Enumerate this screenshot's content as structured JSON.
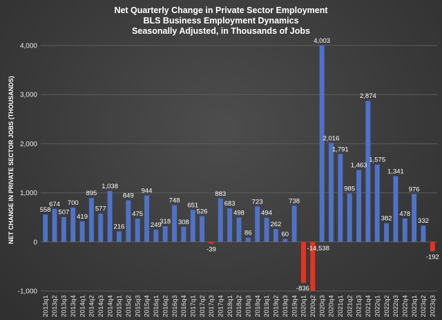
{
  "chart_data": {
    "type": "bar",
    "title_lines": [
      "Net Quarterly Change in Private Sector Employment",
      "BLS Business Employment Dynamics",
      "Seasonally Adjusted, in Thousands of Jobs"
    ],
    "ylabel": "NET CHANGE IN PRIVATE SECTOR JOBS (THOUSANDS)",
    "xlabel": "",
    "ylim": [
      -1000,
      4000
    ],
    "yticks": [
      -1000,
      0,
      1000,
      2000,
      3000,
      4000
    ],
    "ytick_labels": [
      "-1,000",
      "0",
      "1,000",
      "2,000",
      "3,000",
      "4,000"
    ],
    "grid": true,
    "colors": {
      "positive": "#4f72c9",
      "negative": "#e8321e"
    },
    "categories": [
      "2013q1",
      "2013q2",
      "2013q3",
      "2013q4",
      "2014q1",
      "2014q2",
      "2014q3",
      "2014q4",
      "2015q1",
      "2015q2",
      "2015q3",
      "2015q4",
      "2016q1",
      "2016q2",
      "2016q3",
      "2016q4",
      "2017q1",
      "2017q2",
      "2017q3",
      "2017q4",
      "2018q1",
      "2018q2",
      "2018q3",
      "2018q4",
      "2019q1",
      "2019q2",
      "2019q3",
      "2019q4",
      "2020q1",
      "2020q2",
      "2020q3",
      "2020q4",
      "2021q1",
      "2021q2",
      "2021q3",
      "2021q4",
      "2022q1",
      "2022q2",
      "2022q3",
      "2022q4",
      "2023q1",
      "2023q2",
      "2023q3"
    ],
    "values": [
      558,
      674,
      507,
      700,
      419,
      895,
      577,
      1038,
      216,
      849,
      475,
      944,
      249,
      318,
      748,
      308,
      651,
      526,
      -39,
      883,
      683,
      498,
      86,
      723,
      494,
      262,
      60,
      738,
      -836,
      -14538,
      4003,
      2016,
      1791,
      985,
      1463,
      2874,
      1575,
      382,
      1341,
      478,
      976,
      332,
      -192
    ],
    "data_labels": [
      "558",
      "674",
      "507",
      "700",
      "419",
      "895",
      "577",
      "1,038",
      "216",
      "849",
      "475",
      "944",
      "249",
      "318",
      "748",
      "308",
      "651",
      "526",
      "-39",
      "883",
      "683",
      "498",
      "86",
      "723",
      "494",
      "262",
      "60",
      "738",
      "-836",
      "-14,538",
      "4,003",
      "2,016",
      "1,791",
      "985",
      "1,463",
      "2,874",
      "1,575",
      "382",
      "1,341",
      "478",
      "976",
      "332",
      "-192"
    ]
  }
}
